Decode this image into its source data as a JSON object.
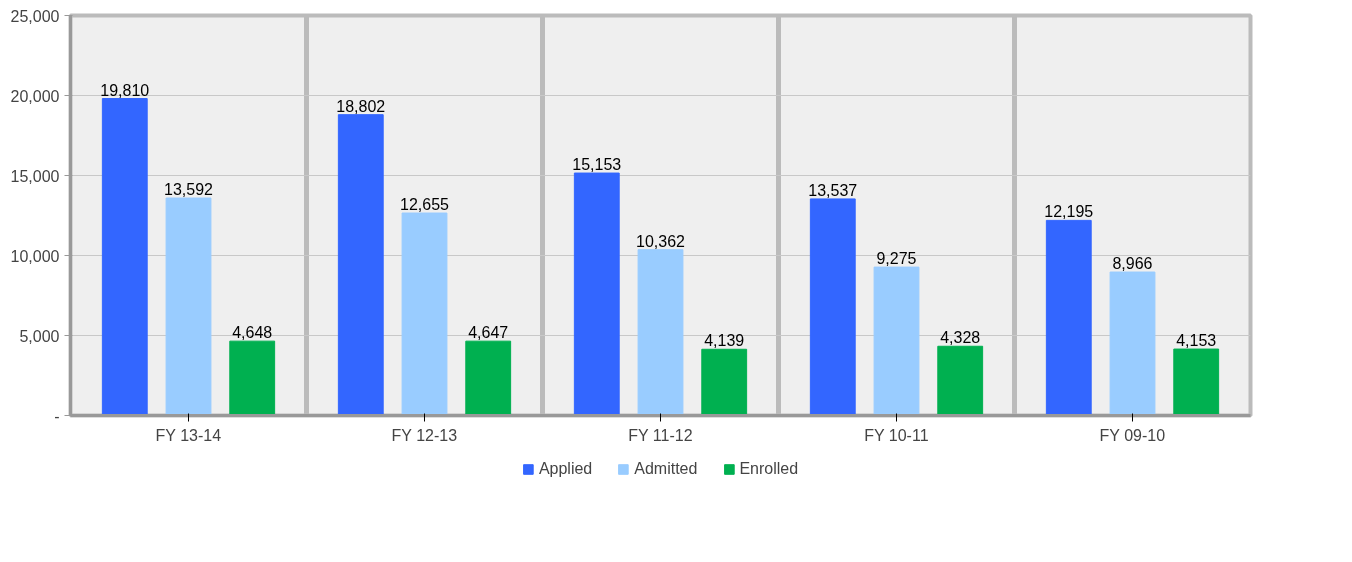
{
  "chart_data": {
    "type": "bar",
    "categories": [
      "FY 13-14",
      "FY 12-13",
      "FY 11-12",
      "FY 10-11",
      "FY 09-10"
    ],
    "series": [
      {
        "name": "Applied",
        "color": "#3366ff",
        "values": [
          19810,
          18802,
          15153,
          13537,
          12195
        ],
        "value_labels": [
          "19,810",
          "18,802",
          "15,153",
          "13,537",
          "12,195"
        ]
      },
      {
        "name": "Admitted",
        "color": "#99ccff",
        "values": [
          13592,
          12655,
          10362,
          9275,
          8966
        ],
        "value_labels": [
          "13,592",
          "12,655",
          "10,362",
          "9,275",
          "8,966"
        ]
      },
      {
        "name": "Enrolled",
        "color": "#00b050",
        "values": [
          4648,
          4647,
          4139,
          4328,
          4153
        ],
        "value_labels": [
          "4,648",
          "4,647",
          "4,139",
          "4,328",
          "4,153"
        ]
      }
    ],
    "ylim": [
      0,
      25000
    ],
    "yticks": [
      {
        "value": 0,
        "label": "-"
      },
      {
        "value": 5000,
        "label": "5,000"
      },
      {
        "value": 10000,
        "label": "10,000"
      },
      {
        "value": 15000,
        "label": "15,000"
      },
      {
        "value": 20000,
        "label": "20,000"
      },
      {
        "value": 25000,
        "label": "25,000"
      }
    ],
    "grid": true,
    "legend": "bottom"
  }
}
